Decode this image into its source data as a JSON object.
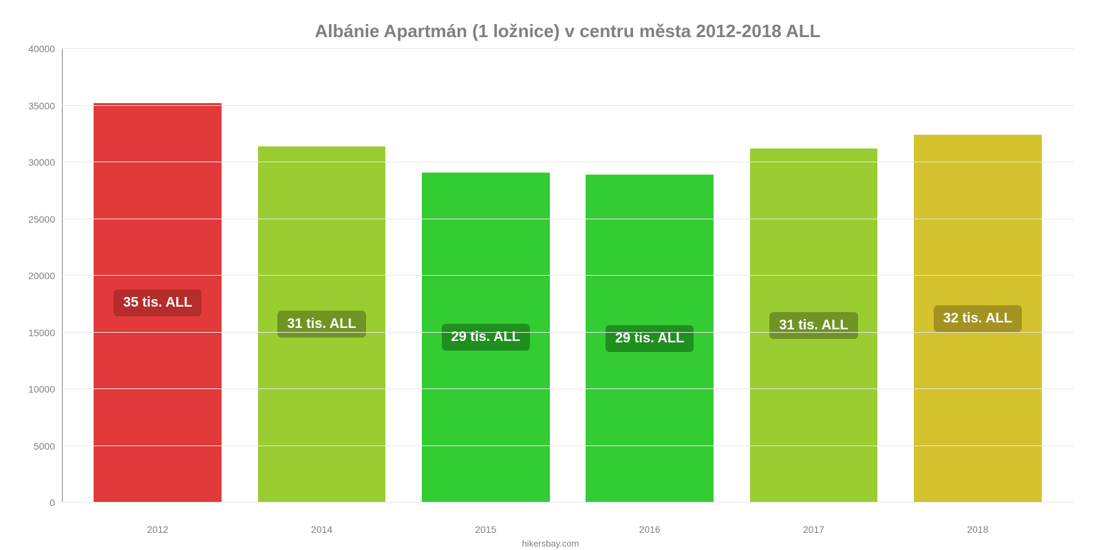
{
  "chart": {
    "type": "bar",
    "title": "Albánie Apartmán (1 ložnice) v centru města 2012-2018 ALL",
    "title_color": "#808080",
    "title_fontsize": 26,
    "background_color": "#ffffff",
    "grid_color": "#e6e6e6",
    "axis_color": "#808080",
    "tick_label_color": "#808080",
    "tick_label_fontsize": 14,
    "bar_label_fontsize": 20,
    "bar_label_text_color": "#ffffff",
    "bar_width_ratio": 0.78,
    "ylim": [
      0,
      40000
    ],
    "yticks": [
      0,
      5000,
      10000,
      15000,
      20000,
      25000,
      30000,
      35000,
      40000
    ],
    "categories": [
      "2012",
      "2014",
      "2015",
      "2016",
      "2017",
      "2018"
    ],
    "values": [
      35200,
      31400,
      29100,
      28900,
      31200,
      32400
    ],
    "value_labels": [
      "35 tis. ALL",
      "31 tis. ALL",
      "29 tis. ALL",
      "29 tis. ALL",
      "31 tis. ALL",
      "32 tis. ALL"
    ],
    "bar_colors": [
      "#e23a3a",
      "#9acd32",
      "#33cc33",
      "#33cc33",
      "#9acd32",
      "#d4c22f"
    ],
    "label_badge_colors": [
      "#b52c2c",
      "#6f9424",
      "#1f8f1f",
      "#1f8f1f",
      "#6f9424",
      "#a39322"
    ],
    "footer": "hikersbay.com"
  }
}
